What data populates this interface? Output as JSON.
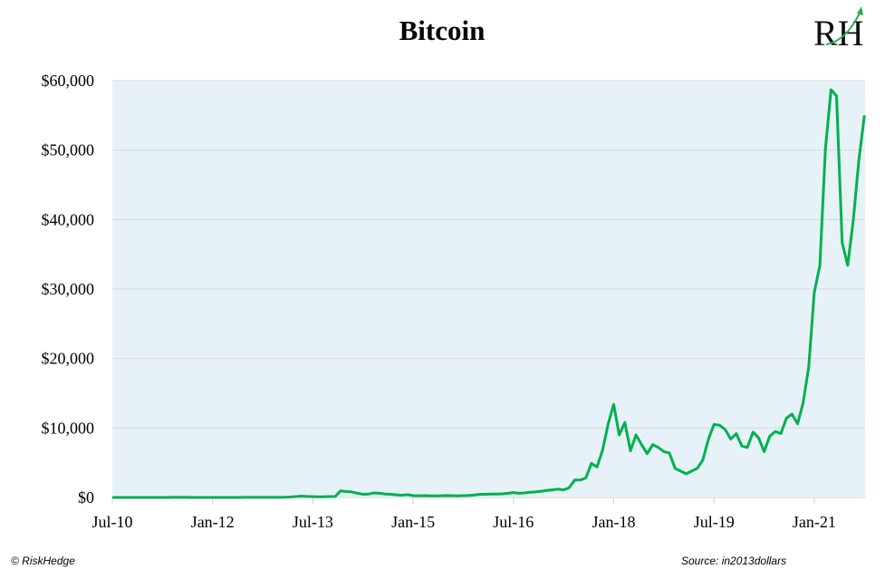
{
  "chart_data": {
    "type": "line",
    "title": "Bitcoin",
    "xlabel": "",
    "ylabel": "",
    "ylim": [
      0,
      60000
    ],
    "grid": true,
    "legend": "none",
    "y_tick_labels": [
      "$0",
      "$10,000",
      "$20,000",
      "$30,000",
      "$40,000",
      "$50,000",
      "$60,000"
    ],
    "y_ticks": [
      0,
      10000,
      20000,
      30000,
      40000,
      50000,
      60000
    ],
    "x_tick_labels": [
      "Jul-10",
      "Jan-12",
      "Jul-13",
      "Jan-15",
      "Jul-16",
      "Jan-18",
      "Jul-19",
      "Jan-21"
    ],
    "x": [
      "2010-07",
      "2010-08",
      "2010-09",
      "2010-10",
      "2010-11",
      "2010-12",
      "2011-01",
      "2011-02",
      "2011-03",
      "2011-04",
      "2011-05",
      "2011-06",
      "2011-07",
      "2011-08",
      "2011-09",
      "2011-10",
      "2011-11",
      "2011-12",
      "2012-01",
      "2012-02",
      "2012-03",
      "2012-04",
      "2012-05",
      "2012-06",
      "2012-07",
      "2012-08",
      "2012-09",
      "2012-10",
      "2012-11",
      "2012-12",
      "2013-01",
      "2013-02",
      "2013-03",
      "2013-04",
      "2013-05",
      "2013-06",
      "2013-07",
      "2013-08",
      "2013-09",
      "2013-10",
      "2013-11",
      "2013-12",
      "2014-01",
      "2014-02",
      "2014-03",
      "2014-04",
      "2014-05",
      "2014-06",
      "2014-07",
      "2014-08",
      "2014-09",
      "2014-10",
      "2014-11",
      "2014-12",
      "2015-01",
      "2015-02",
      "2015-03",
      "2015-04",
      "2015-05",
      "2015-06",
      "2015-07",
      "2015-08",
      "2015-09",
      "2015-10",
      "2015-11",
      "2015-12",
      "2016-01",
      "2016-02",
      "2016-03",
      "2016-04",
      "2016-05",
      "2016-06",
      "2016-07",
      "2016-08",
      "2016-09",
      "2016-10",
      "2016-11",
      "2016-12",
      "2017-01",
      "2017-02",
      "2017-03",
      "2017-04",
      "2017-05",
      "2017-06",
      "2017-07",
      "2017-08",
      "2017-09",
      "2017-10",
      "2017-11",
      "2017-12",
      "2018-01",
      "2018-02",
      "2018-03",
      "2018-04",
      "2018-05",
      "2018-06",
      "2018-07",
      "2018-08",
      "2018-09",
      "2018-10",
      "2018-11",
      "2018-12",
      "2019-01",
      "2019-02",
      "2019-03",
      "2019-04",
      "2019-05",
      "2019-06",
      "2019-07",
      "2019-08",
      "2019-09",
      "2019-10",
      "2019-11",
      "2019-12",
      "2020-01",
      "2020-02",
      "2020-03",
      "2020-04",
      "2020-05",
      "2020-06",
      "2020-07",
      "2020-08",
      "2020-09",
      "2020-10",
      "2020-11",
      "2020-12",
      "2021-01",
      "2021-02",
      "2021-03",
      "2021-04",
      "2021-05",
      "2021-06",
      "2021-07",
      "2021-08",
      "2021-09",
      "2021-10"
    ],
    "series": [
      {
        "values": [
          0,
          0,
          0,
          0,
          0,
          0,
          0,
          1,
          1,
          1,
          5,
          15,
          14,
          10,
          6,
          4,
          3,
          4,
          6,
          5,
          5,
          5,
          5,
          6,
          8,
          11,
          12,
          12,
          12,
          13,
          15,
          25,
          60,
          130,
          200,
          150,
          120,
          100,
          100,
          130,
          150,
          950,
          850,
          800,
          600,
          450,
          500,
          650,
          600,
          500,
          450,
          380,
          320,
          400,
          260,
          250,
          260,
          240,
          240,
          250,
          280,
          260,
          240,
          260,
          300,
          350,
          450,
          450,
          480,
          500,
          520,
          600,
          700,
          600,
          650,
          750,
          800,
          900,
          1000,
          1100,
          1200,
          1100,
          1400,
          2500,
          2500,
          2800,
          4900,
          4400,
          6800,
          10600,
          13400,
          9000,
          10800,
          6700,
          9000,
          7600,
          6300,
          7600,
          7200,
          6600,
          6400,
          4200,
          3800,
          3400,
          3800,
          4200,
          5400,
          8400,
          10500,
          10400,
          9800,
          8400,
          9200,
          7400,
          7200,
          9400,
          8600,
          6600,
          8800,
          9500,
          9200,
          11400,
          12000,
          10600,
          13600,
          18800,
          29500,
          33400,
          50100,
          58700,
          57800,
          36700,
          33400,
          39900,
          48500,
          55000
        ]
      }
    ],
    "colors": {
      "line": "#00B050",
      "plot_background": "#E7F2F8",
      "gridline": "#D9D9D9"
    }
  },
  "footer": {
    "copyright": "© RiskHedge",
    "source": "Source: in2013dollars"
  },
  "logo": {
    "text": "RH"
  }
}
